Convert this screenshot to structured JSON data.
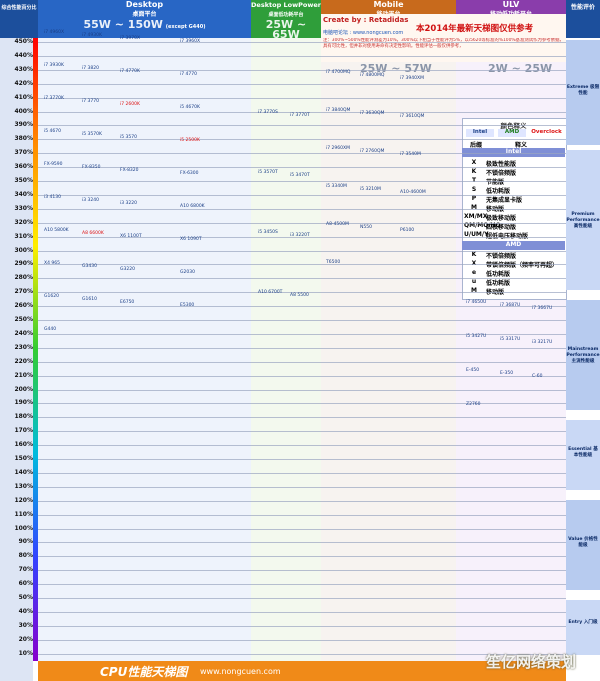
{
  "chart_data": {
    "type": "table",
    "title": "CPU性能天梯图",
    "y_axis_header": "综合性能百分比",
    "y_ticks": [
      "450%",
      "440%",
      "430%",
      "420%",
      "410%",
      "400%",
      "390%",
      "380%",
      "370%",
      "360%",
      "350%",
      "340%",
      "330%",
      "320%",
      "310%",
      "300%",
      "290%",
      "280%",
      "270%",
      "260%",
      "250%",
      "240%",
      "230%",
      "220%",
      "210%",
      "200%",
      "190%",
      "180%",
      "170%",
      "160%",
      "150%",
      "140%",
      "130%",
      "120%",
      "110%",
      "100%",
      "90%",
      "80%",
      "70%",
      "60%",
      "50%",
      "40%",
      "30%",
      "20%",
      "10%"
    ],
    "columns": [
      {
        "title": "Desktop",
        "subtitle": "桌面平台",
        "tdp": "55W ~ 150W",
        "note": "(except G440)"
      },
      {
        "title": "Desktop LowPower",
        "subtitle": "桌面低功耗平台",
        "tdp": "25W ~ 65W"
      },
      {
        "title": "Mobile",
        "subtitle": "移动平台",
        "tdp": "25W ~ 57W"
      },
      {
        "title": "ULV",
        "subtitle": "移动低功耗平台",
        "tdp": "2W ~ 25W"
      },
      {
        "title": "性能评价"
      }
    ],
    "segments": [
      {
        "en": "Extreme",
        "cn": "极限性能"
      },
      {
        "en": "Premium Performance",
        "cn": "高性能级"
      },
      {
        "en": "Mainstream Performance",
        "cn": "主流性能级"
      },
      {
        "en": "Essential",
        "cn": "基本性能级"
      },
      {
        "en": "Value",
        "cn": "价格性能级"
      },
      {
        "en": "Entry",
        "cn": "入门级"
      }
    ]
  },
  "banner": {
    "created_by": "Create by : Retadidas",
    "headline": "本2014年最新天梯图仅供参考",
    "website_line": "电脑吧论坛 : www.nongcuen.com",
    "note": "注：300%~500%性能评测差为10%，300%以下相当于性能评为5%，以i5620等标准的%100%基准测试作为参考依据，具有可比性，但并非对使用寿命有决定性影响。性能评估一般仅供参考，"
  },
  "legend": {
    "title": "颜色释义",
    "labels": [
      "Intel",
      "AMD",
      "Overclock"
    ],
    "sub_hdr": [
      "后缀",
      "释义"
    ],
    "intel_hdr": "Intel",
    "amd_hdr": "AMD",
    "intel_rows": [
      [
        "X",
        "极致性能版"
      ],
      [
        "K",
        "不锁倍频版"
      ],
      [
        "T",
        "节能版"
      ],
      [
        "S",
        "低功耗版"
      ],
      [
        "P",
        "无集成显卡版"
      ],
      [
        "M",
        "移动版"
      ],
      [
        "XM/MX",
        "极致移动版"
      ],
      [
        "QM/MQ/HQ",
        "四核移动版"
      ],
      [
        "U/UM/Y",
        "超低电压移动版"
      ]
    ],
    "amd_rows": [
      [
        "K",
        "不锁倍频版"
      ],
      [
        "X",
        "带锁倍频版（频率可再超）"
      ],
      [
        "e",
        "低功耗版"
      ],
      [
        "u",
        "低功耗版"
      ],
      [
        "M",
        "移动版"
      ]
    ]
  },
  "footer": {
    "title": "CPU性能天梯图",
    "url": "www.nongcuen.com"
  },
  "watermark": "笙亿网络策划",
  "cpu_labels": [
    [
      "i7 4960X",
      0,
      0
    ],
    [
      "i7 4930K",
      0,
      1
    ],
    [
      "i7 3970X",
      0,
      2
    ],
    [
      "i7 3960X",
      0,
      3
    ],
    [
      "i7 3930K",
      0,
      4
    ],
    [
      "i7 3820",
      0,
      5
    ],
    [
      "i7 4770K",
      0,
      6
    ],
    [
      "i7 4770",
      0,
      7
    ],
    [
      "i7 3770K",
      0,
      8
    ],
    [
      "i7 3770",
      0,
      9
    ],
    [
      "i7 2600K",
      0,
      10
    ],
    [
      "i5 4670K",
      0,
      11
    ],
    [
      "i5 4670",
      0,
      12
    ],
    [
      "i5 3570K",
      0,
      13
    ],
    [
      "i5 3570",
      0,
      14
    ],
    [
      "i5 2500K",
      0,
      15
    ],
    [
      "FX-9590",
      0,
      16
    ],
    [
      "FX-8350",
      0,
      17
    ],
    [
      "FX-8320",
      0,
      18
    ],
    [
      "FX-6300",
      0,
      19
    ],
    [
      "i3 4130",
      0,
      20
    ],
    [
      "i3 3240",
      0,
      21
    ],
    [
      "i3 3220",
      0,
      22
    ],
    [
      "A10 6800K",
      0,
      23
    ],
    [
      "A10 5800K",
      0,
      24
    ],
    [
      "A8 6600K",
      0,
      25
    ],
    [
      "X6 1100T",
      0,
      26
    ],
    [
      "X6 1090T",
      0,
      27
    ],
    [
      "X4 965",
      0,
      28
    ],
    [
      "G3430",
      0,
      29
    ],
    [
      "G3220",
      0,
      30
    ],
    [
      "G2030",
      0,
      31
    ],
    [
      "G1620",
      0,
      32
    ],
    [
      "G1610",
      0,
      33
    ],
    [
      "E6750",
      0,
      34
    ],
    [
      "E5300",
      0,
      35
    ],
    [
      "G440",
      0,
      36
    ],
    [
      "i7 3770S",
      1,
      0
    ],
    [
      "i7 3770T",
      1,
      1
    ],
    [
      "i5 3570T",
      1,
      2
    ],
    [
      "i5 3470T",
      1,
      3
    ],
    [
      "i5 3450S",
      1,
      4
    ],
    [
      "i3 3220T",
      1,
      5
    ],
    [
      "A10 6700T",
      1,
      6
    ],
    [
      "A8 5500",
      1,
      7
    ],
    [
      "i7 4700MQ",
      2,
      0
    ],
    [
      "i7 4800MQ",
      2,
      1
    ],
    [
      "i7 3940XM",
      2,
      2
    ],
    [
      "i7 3840QM",
      2,
      3
    ],
    [
      "i7 3630QM",
      2,
      4
    ],
    [
      "i7 3610QM",
      2,
      5
    ],
    [
      "i7 2960XM",
      2,
      6
    ],
    [
      "i7 2760QM",
      2,
      7
    ],
    [
      "i7 3540M",
      2,
      8
    ],
    [
      "i5 3340M",
      2,
      9
    ],
    [
      "i5 3210M",
      2,
      10
    ],
    [
      "A10-4600M",
      2,
      11
    ],
    [
      "A8-4500M",
      2,
      12
    ],
    [
      "N550",
      2,
      13
    ],
    [
      "P6100",
      2,
      14
    ],
    [
      "T6500",
      2,
      15
    ],
    [
      "i7 4650U",
      3,
      0
    ],
    [
      "i7 3687U",
      3,
      1
    ],
    [
      "i7 3667U",
      3,
      2
    ],
    [
      "i5 3427U",
      3,
      3
    ],
    [
      "i5 3317U",
      3,
      4
    ],
    [
      "i3 3217U",
      3,
      5
    ],
    [
      "E-450",
      3,
      6
    ],
    [
      "E-350",
      3,
      7
    ],
    [
      "C-60",
      3,
      8
    ],
    [
      "Z2760",
      3,
      9
    ]
  ]
}
